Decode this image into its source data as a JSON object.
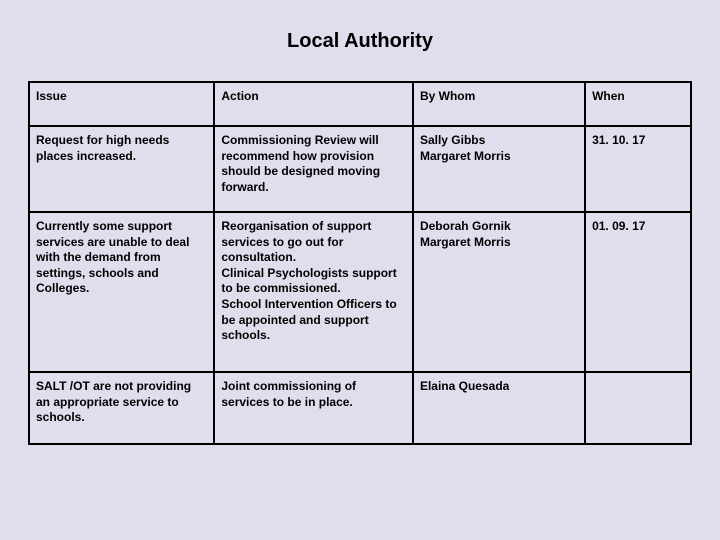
{
  "title": "Local Authority",
  "table": {
    "background_color": "#dedeed",
    "border_color": "#000000",
    "text_color": "#000000",
    "font_family": "Arial",
    "header_fontsize": 12,
    "cell_fontsize": 12,
    "font_weight": "bold",
    "columns": [
      {
        "label": "Issue",
        "width_pct": 28
      },
      {
        "label": "Action",
        "width_pct": 30
      },
      {
        "label": "By Whom",
        "width_pct": 26
      },
      {
        "label": "When",
        "width_pct": 16
      }
    ],
    "rows": [
      {
        "issue": "Request for high needs places increased.",
        "action": "Commissioning Review will recommend how provision should be designed moving forward.",
        "by_whom": "Sally Gibbs\nMargaret Morris",
        "when": "31. 10. 17"
      },
      {
        "issue": "Currently some support services are unable to deal with the demand from settings, schools and Colleges.",
        "action": "Reorganisation of support services to go out for consultation.\nClinical Psychologists support to be commissioned.\nSchool Intervention Officers to be appointed and support schools.",
        "by_whom": "Deborah Gornik\nMargaret Morris",
        "when": "01. 09. 17"
      },
      {
        "issue": "SALT /OT are not providing an appropriate service to schools.",
        "action": "Joint commissioning of services to be in place.",
        "by_whom": "Elaina Quesada",
        "when": ""
      }
    ]
  }
}
